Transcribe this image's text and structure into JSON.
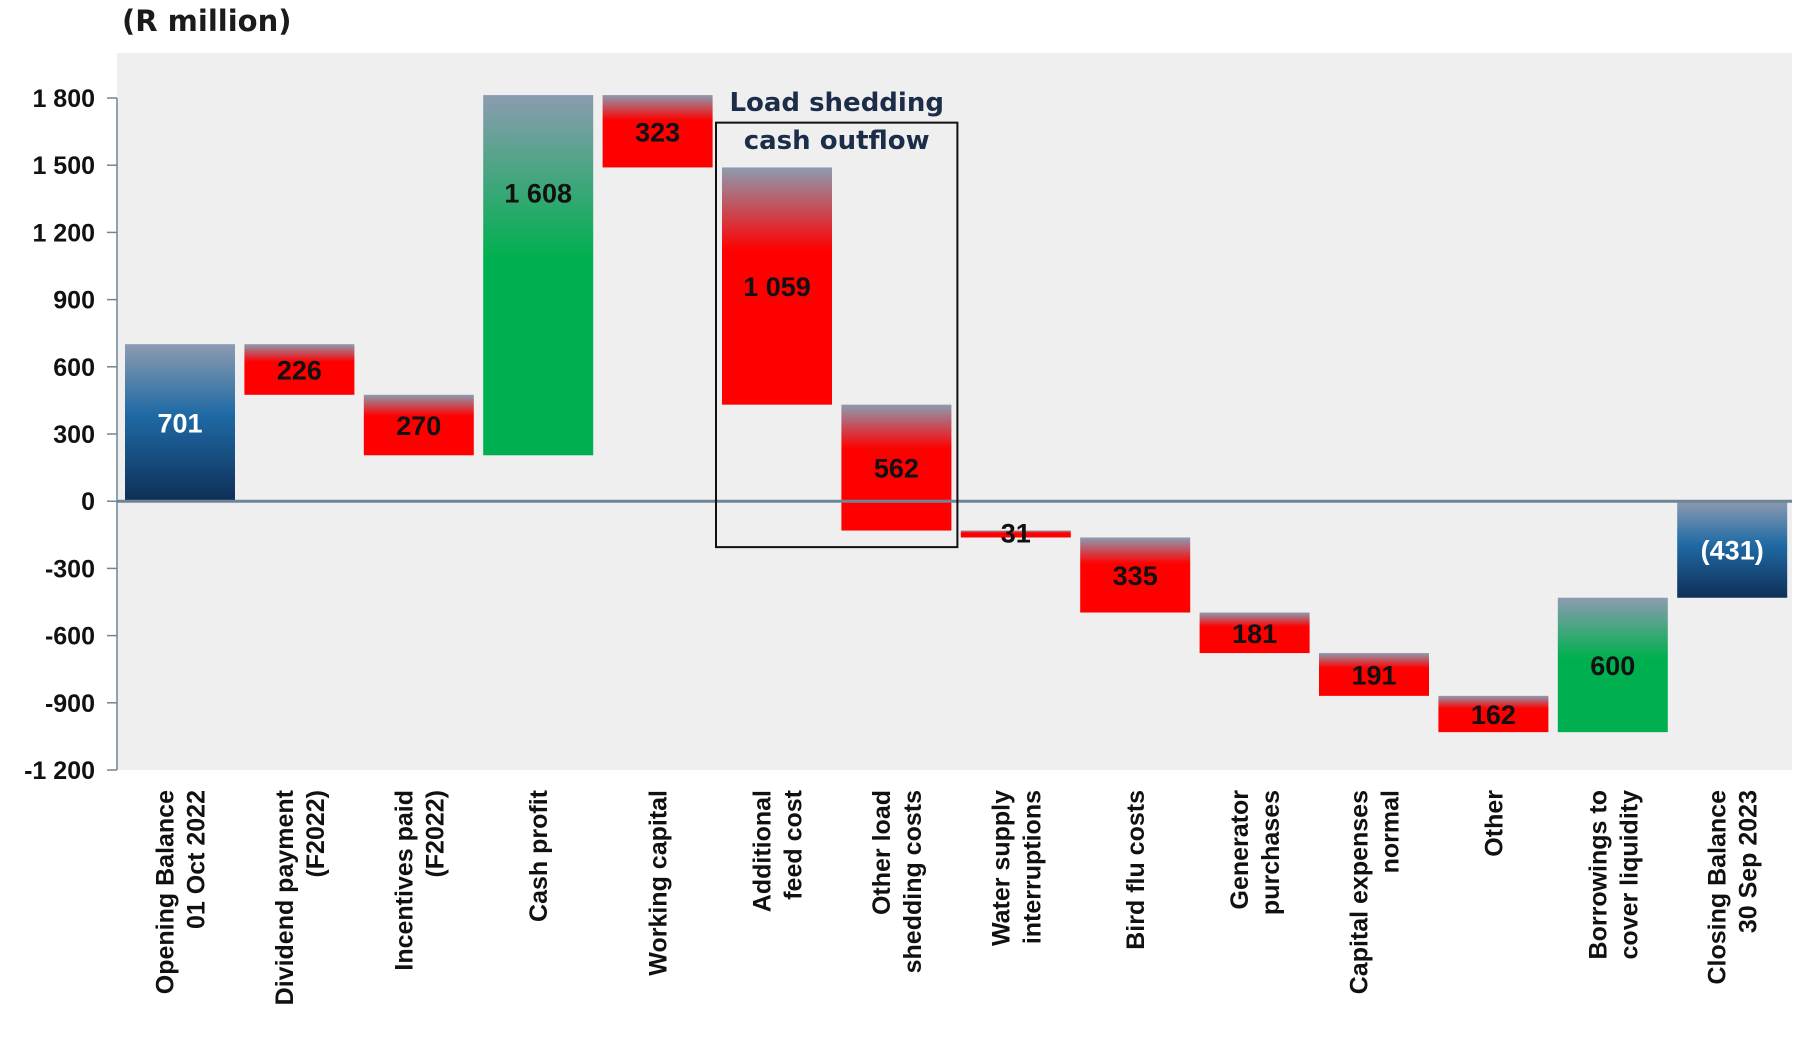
{
  "chart_data": {
    "type": "waterfall",
    "unit_label": "(R million)",
    "ylim": [
      -1200,
      1800
    ],
    "y_ticks": [
      {
        "value": 1800,
        "label": "1 800"
      },
      {
        "value": 1500,
        "label": "1 500"
      },
      {
        "value": 1200,
        "label": "1 200"
      },
      {
        "value": 900,
        "label": "900"
      },
      {
        "value": 600,
        "label": "600"
      },
      {
        "value": 300,
        "label": "300"
      },
      {
        "value": 0,
        "label": "0"
      },
      {
        "value": -300,
        "label": "-300"
      },
      {
        "value": -600,
        "label": "-600"
      },
      {
        "value": -900,
        "label": "-900"
      },
      {
        "value": -1200,
        "label": "-1 200"
      }
    ],
    "grid": false,
    "legend": "none",
    "bars": [
      {
        "category": [
          "Opening Balance",
          "01 Oct 2022"
        ],
        "start": 0,
        "end": 701,
        "value": 701,
        "label": "701",
        "kind": "total"
      },
      {
        "category": [
          "Dividend payment",
          "(F2022)"
        ],
        "start": 701,
        "end": 475,
        "value": -226,
        "label": "226",
        "kind": "decrease"
      },
      {
        "category": [
          "Incentives paid",
          "(F2022)"
        ],
        "start": 475,
        "end": 205,
        "value": -270,
        "label": "270",
        "kind": "decrease"
      },
      {
        "category": [
          "Cash profit"
        ],
        "start": 205,
        "end": 1813,
        "value": 1608,
        "label": "1 608",
        "kind": "increase"
      },
      {
        "category": [
          "Working capital"
        ],
        "start": 1813,
        "end": 1490,
        "value": -323,
        "label": "323",
        "kind": "decrease"
      },
      {
        "category": [
          "Additional",
          "feed cost"
        ],
        "start": 1490,
        "end": 431,
        "value": -1059,
        "label": "1 059",
        "kind": "decrease"
      },
      {
        "category": [
          "Other load",
          "shedding costs"
        ],
        "start": 431,
        "end": -131,
        "value": -562,
        "label": "562",
        "kind": "decrease"
      },
      {
        "category": [
          "Water supply",
          "interruptions"
        ],
        "start": -131,
        "end": -162,
        "value": -31,
        "label": "31",
        "kind": "decrease"
      },
      {
        "category": [
          "Bird flu costs"
        ],
        "start": -162,
        "end": -497,
        "value": -335,
        "label": "335",
        "kind": "decrease"
      },
      {
        "category": [
          "Generator",
          "purchases"
        ],
        "start": -497,
        "end": -678,
        "value": -181,
        "label": "181",
        "kind": "decrease"
      },
      {
        "category": [
          "Capital expenses",
          "normal"
        ],
        "start": -678,
        "end": -869,
        "value": -191,
        "label": "191",
        "kind": "decrease"
      },
      {
        "category": [
          "Other"
        ],
        "start": -869,
        "end": -1031,
        "value": -162,
        "label": "162",
        "kind": "decrease"
      },
      {
        "category": [
          "Borrowings to",
          "cover liquidity"
        ],
        "start": -1031,
        "end": -431,
        "value": 600,
        "label": "600",
        "kind": "increase"
      },
      {
        "category": [
          "Closing Balance",
          "30 Sep 2023"
        ],
        "start": 0,
        "end": -431,
        "value": -431,
        "label": "(431)",
        "kind": "total"
      }
    ],
    "annotation": {
      "lines": [
        "Load shedding",
        "cash outflow"
      ],
      "covers": [
        "Additional feed cost",
        "Other load shedding costs"
      ]
    },
    "colors": {
      "plot_bg": "#efefef",
      "increase": "#00b050",
      "decrease": "#ff0000",
      "total_top": "#1f6aa5",
      "total_bottom": "#0f2f57",
      "fade_top": "#8c9bb0",
      "zero_line": "#6f8594",
      "label_dark": "#111111",
      "label_light": "#ffffff"
    }
  }
}
